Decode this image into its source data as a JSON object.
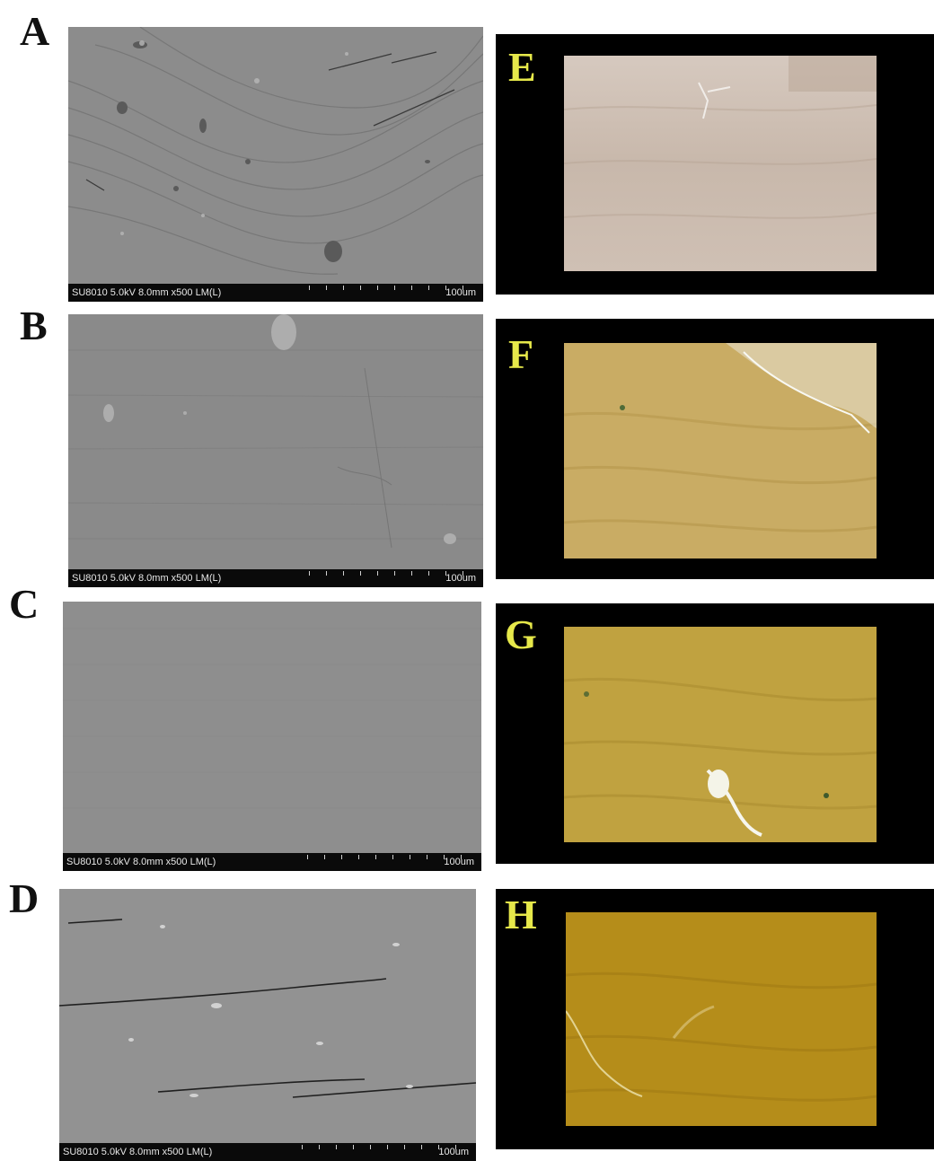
{
  "sem_panels": [
    {
      "letter": "A",
      "meta": "SU8010 5.0kV 8.0mm x500 LM(L)",
      "scale": "100um"
    },
    {
      "letter": "B",
      "meta": "SU8010 5.0kV 8.0mm x500 LM(L)",
      "scale": "100um"
    },
    {
      "letter": "C",
      "meta": "SU8010 5.0kV 8.0mm x500 LM(L)",
      "scale": "100um"
    },
    {
      "letter": "D",
      "meta": "SU8010 5.0kV 8.0mm x500 LM(L)",
      "scale": "100um"
    }
  ],
  "photo_panels": [
    {
      "letter": "E"
    },
    {
      "letter": "F"
    },
    {
      "letter": "G"
    },
    {
      "letter": "H"
    }
  ],
  "colors": {
    "panel_label_left": "#111111",
    "panel_label_right": "#e6e84a",
    "photo_background": "#000000",
    "sem_gray": "#8d8d8d",
    "wood_e": "#cbbdb2",
    "wood_f": "#c9ac64",
    "wood_g": "#c0a240",
    "wood_h": "#b58d1a"
  }
}
